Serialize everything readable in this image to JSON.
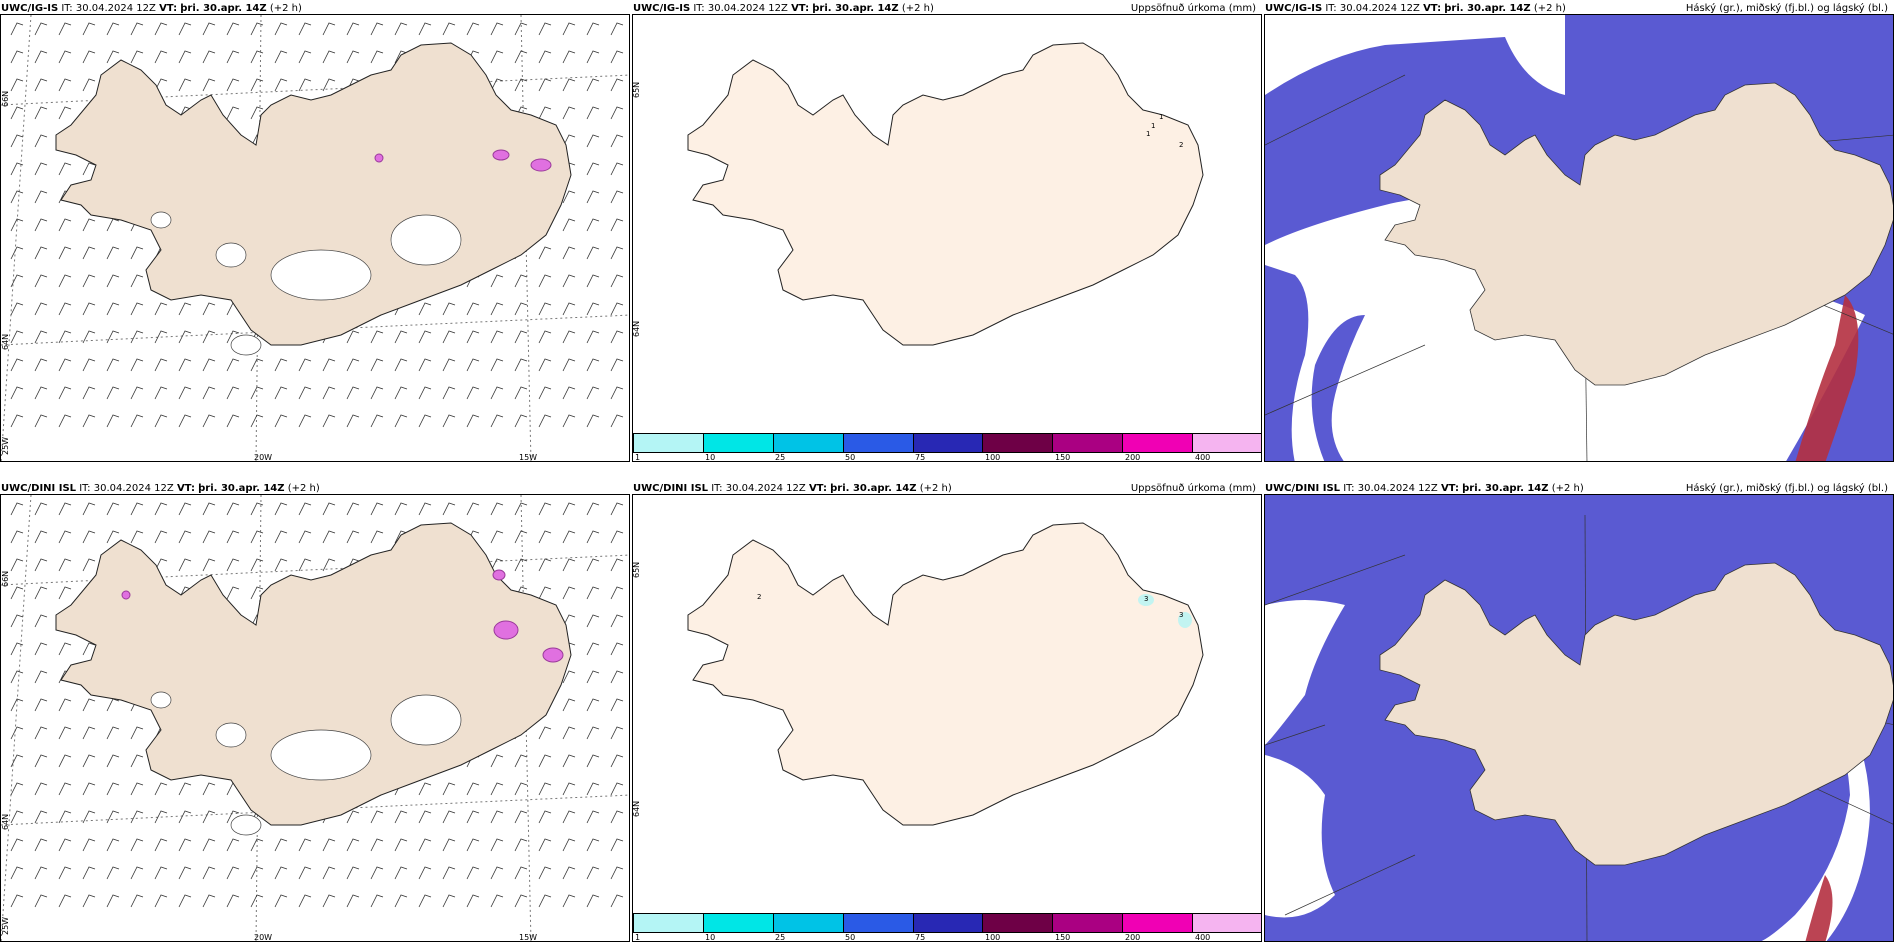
{
  "panels": [
    {
      "id": "tl",
      "model": "UWC/IG-IS",
      "it_label": "IT:",
      "it_value": "30.04.2024 12Z",
      "vt_label": "VT:",
      "vt_value": "þri. 30.apr. 14Z",
      "lead": "(+2 h)",
      "right_title": "",
      "lat_labels": [
        "66N",
        "64N",
        "25W"
      ],
      "lon_labels": [
        "20W",
        "15W"
      ]
    },
    {
      "id": "tm",
      "model": "UWC/IG-IS",
      "it_label": "IT:",
      "it_value": "30.04.2024 12Z",
      "vt_label": "VT:",
      "vt_value": "þri. 30.apr. 14Z",
      "lead": "(+2 h)",
      "right_title": "Uppsöfnuð úrkoma (mm)",
      "lat_labels": [
        "65N",
        "64N"
      ],
      "precip_values": [
        "1",
        "1",
        "1",
        "2"
      ]
    },
    {
      "id": "tr",
      "model": "UWC/IG-IS",
      "it_label": "IT:",
      "it_value": "30.04.2024 12Z",
      "vt_label": "VT:",
      "vt_value": "þri. 30.apr. 14Z",
      "lead": "(+2 h)",
      "right_title": "Háský (gr.), miðský (fj.bl.) og lágský (bl.)"
    },
    {
      "id": "bl",
      "model": "UWC/DINI ISL",
      "it_label": "IT:",
      "it_value": "30.04.2024 12Z",
      "vt_label": "VT:",
      "vt_value": "þri. 30.apr. 14Z",
      "lead": "(+2 h)",
      "right_title": "",
      "lat_labels": [
        "66N",
        "64N",
        "25W"
      ],
      "lon_labels": [
        "20W",
        "15W"
      ]
    },
    {
      "id": "bm",
      "model": "UWC/DINI ISL",
      "it_label": "IT:",
      "it_value": "30.04.2024 12Z",
      "vt_label": "VT:",
      "vt_value": "þri. 30.apr. 14Z",
      "lead": "(+2 h)",
      "right_title": "Uppsöfnuð úrkoma (mm)",
      "lat_labels": [
        "65N",
        "64N"
      ],
      "precip_values": [
        "2",
        "3",
        "3"
      ]
    },
    {
      "id": "br",
      "model": "UWC/DINI ISL",
      "it_label": "IT:",
      "it_value": "30.04.2024 12Z",
      "vt_label": "VT:",
      "vt_value": "þri. 30.apr. 14Z",
      "lead": "(+2 h)",
      "right_title": "Háský (gr.), miðský (fj.bl.) og lágský (bl.)"
    }
  ],
  "colorbar": {
    "colors": [
      "#b4f5f5",
      "#00e6e6",
      "#00c3e6",
      "#2a5ae6",
      "#2828b4",
      "#6e0046",
      "#aa0082",
      "#f000b4",
      "#f5b4f0"
    ],
    "ticks": [
      "1",
      "10",
      "25",
      "50",
      "75",
      "100",
      "150",
      "200",
      "400"
    ]
  },
  "colors": {
    "land": "#efe0d0",
    "land_precip": "#fdf0e4",
    "cloud_mid": "#5a5ad2",
    "cloud_high": "#b43040",
    "cloud_low": "#4a8af0",
    "ice_hatch": "#555555",
    "conv": "#e070e0"
  }
}
